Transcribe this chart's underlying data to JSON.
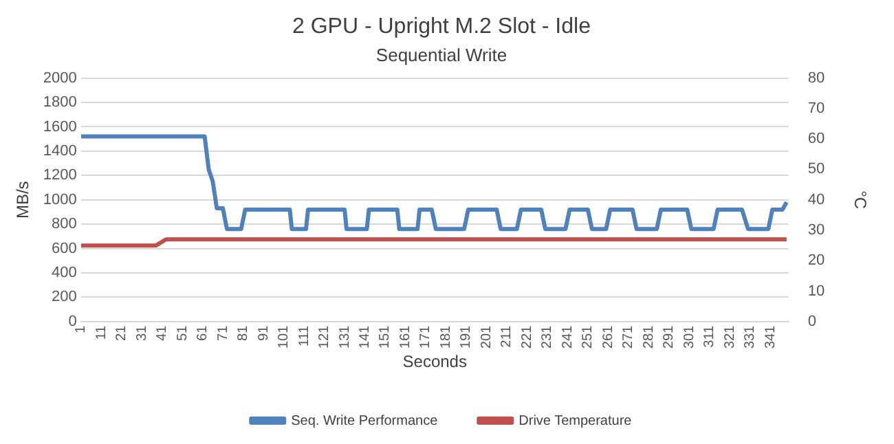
{
  "chart_data": {
    "type": "line",
    "title": "2 GPU - Upright M.2 Slot - Idle",
    "subtitle": "Sequential Write",
    "xlabel": "Seconds",
    "ylabel": "MB/s",
    "y2label": "°C",
    "xlim": [
      1,
      350
    ],
    "xticks": [
      1,
      11,
      21,
      31,
      41,
      51,
      61,
      71,
      81,
      91,
      101,
      111,
      121,
      131,
      141,
      151,
      161,
      171,
      181,
      191,
      201,
      211,
      221,
      231,
      241,
      251,
      261,
      271,
      281,
      291,
      301,
      311,
      321,
      331,
      341
    ],
    "ylim": [
      0,
      2000
    ],
    "yticks": [
      0,
      200,
      400,
      600,
      800,
      1000,
      1200,
      1400,
      1600,
      1800,
      2000
    ],
    "y2lim": [
      0,
      80
    ],
    "y2ticks": [
      0,
      10,
      20,
      30,
      40,
      50,
      60,
      70,
      80
    ],
    "grid": "y",
    "legend": "bottom",
    "marker": "none",
    "line_style": "solid",
    "series": [
      {
        "name": "Seq. Write Performance",
        "color": "#4f81bd",
        "x": [
          1,
          20,
          40,
          62,
          64,
          66,
          68,
          71,
          73,
          80,
          82,
          104,
          105,
          112,
          113,
          131,
          132,
          142,
          143,
          157,
          158,
          167,
          168,
          174,
          176,
          190,
          192,
          206,
          208,
          216,
          218,
          228,
          230,
          240,
          242,
          251,
          253,
          260,
          262,
          273,
          275,
          285,
          287,
          300,
          302,
          313,
          315,
          327,
          330,
          340,
          342,
          347,
          349
        ],
        "values": [
          1520,
          1520,
          1520,
          1520,
          1250,
          1150,
          930,
          930,
          760,
          760,
          920,
          920,
          760,
          760,
          920,
          920,
          760,
          760,
          920,
          920,
          760,
          760,
          920,
          920,
          760,
          760,
          920,
          920,
          760,
          760,
          920,
          920,
          760,
          760,
          920,
          920,
          760,
          760,
          920,
          920,
          760,
          760,
          920,
          920,
          760,
          760,
          920,
          920,
          760,
          760,
          920,
          920,
          980
        ]
      },
      {
        "name": "Drive Temperature",
        "color": "#c0504d",
        "axis": "y2",
        "x": [
          1,
          38,
          43,
          349
        ],
        "values": [
          25,
          25,
          27,
          27
        ]
      }
    ]
  }
}
